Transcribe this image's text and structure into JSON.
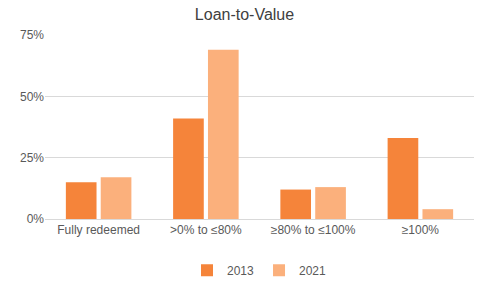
{
  "chart_data": {
    "type": "bar",
    "title": "Loan-to-Value",
    "categories": [
      "Fully redeemed",
      ">0% to ≤80%",
      "≥80% to ≤100%",
      "≥100%"
    ],
    "series": [
      {
        "name": "2013",
        "color": "#f5843a",
        "values": [
          15,
          41,
          12,
          33
        ]
      },
      {
        "name": "2021",
        "color": "#fbb07c",
        "values": [
          17,
          69,
          13,
          4
        ]
      }
    ],
    "ylim": [
      0,
      75
    ],
    "yticks": [
      {
        "value": 0,
        "label": "0%"
      },
      {
        "value": 25,
        "label": "25%"
      },
      {
        "value": 50,
        "label": "50%"
      },
      {
        "value": 75,
        "label": "75%"
      }
    ],
    "grid": true,
    "legend": "bottom"
  }
}
